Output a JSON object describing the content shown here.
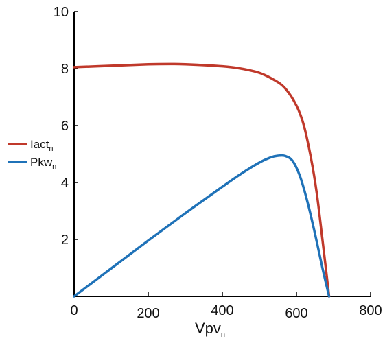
{
  "chart_data": {
    "type": "line",
    "xlabel": "Vpv",
    "xlabel_subscript": "n",
    "ylabel": "",
    "xlim": [
      0,
      800
    ],
    "ylim": [
      0,
      10
    ],
    "x_ticks": [
      {
        "value": 0,
        "label": "0"
      },
      {
        "value": 200,
        "label": "200"
      },
      {
        "value": 400,
        "label": "400"
      },
      {
        "value": 600,
        "label": "600"
      },
      {
        "value": 800,
        "label": "800"
      }
    ],
    "y_ticks": [
      {
        "value": 2,
        "label": "2"
      },
      {
        "value": 4,
        "label": "4"
      },
      {
        "value": 6,
        "label": "6"
      },
      {
        "value": 8,
        "label": "8"
      },
      {
        "value": 10,
        "label": "10"
      }
    ],
    "grid": false,
    "legend_position": "left",
    "series": [
      {
        "name": "Iact",
        "name_subscript": "n",
        "color": "#c0392b",
        "x": [
          0,
          100,
          200,
          260,
          300,
          400,
          450,
          500,
          540,
          570,
          600,
          620,
          640,
          655,
          670,
          680,
          688
        ],
        "y": [
          8.05,
          8.1,
          8.15,
          8.16,
          8.15,
          8.08,
          8.0,
          7.85,
          7.6,
          7.3,
          6.7,
          6.0,
          4.8,
          3.6,
          2.0,
          0.9,
          0
        ]
      },
      {
        "name": "Pkw",
        "name_subscript": "n",
        "color": "#1f72b8",
        "x": [
          0,
          100,
          200,
          300,
          400,
          450,
          500,
          530,
          550,
          570,
          590,
          610,
          630,
          650,
          670,
          688
        ],
        "y": [
          0,
          0.98,
          1.96,
          2.92,
          3.85,
          4.3,
          4.7,
          4.88,
          4.94,
          4.93,
          4.75,
          4.2,
          3.3,
          2.2,
          1.0,
          0
        ]
      }
    ]
  }
}
